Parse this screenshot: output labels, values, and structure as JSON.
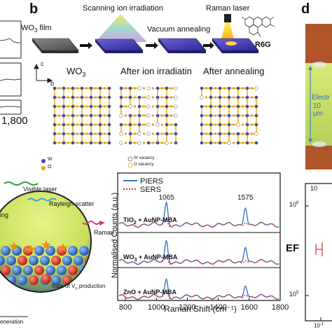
{
  "panel_labels": {
    "b": "b",
    "d": "d"
  },
  "top_left": {
    "axis_tick": "1,800"
  },
  "panel_b": {
    "steps": {
      "film": "WO",
      "film_sub": "3",
      "film_suffix": " film",
      "ion": "Scanning ion irradiation",
      "anneal": "Vacuum annealing",
      "raman": "Raman laser",
      "probe": "R6G"
    },
    "lattice_titles": {
      "pristine": "WO",
      "pristine_sub": "3",
      "irradiated": "After ion irradiatin",
      "annealed": "After annealing"
    },
    "axis_c": "c",
    "axis_b": "b",
    "legend_left": [
      "W",
      "O"
    ],
    "legend_mid": [
      "W vacancy",
      "O vacancy"
    ]
  },
  "bottom_left": {
    "visible_laser": "Visible laser",
    "rayleigh": "Rayleigh scatter",
    "raman": "Raman",
    "rate": "Rate of V",
    "rate_sub": "o",
    "rate_suffix": " production",
    "partial_left": "ing",
    "partial_bottom": "eneration"
  },
  "panel_d": {
    "electrode_label": "Electr",
    "scale_label": "10 μm",
    "ef_label": "EF",
    "y_ticks": [
      "10",
      "10",
      "10"
    ],
    "y_tick_exps": [
      "6",
      "5",
      ""
    ],
    "x_tick": "10",
    "x_tick_exp": "-1"
  },
  "chart_data": {
    "type": "line",
    "xlabel": "Raman Shift (cm⁻¹)",
    "ylabel": "Normalised Counts (a.u.)",
    "xlim": [
      750,
      1800
    ],
    "x_ticks": [
      "800",
      "1000",
      "1200",
      "1400",
      "1600",
      "1800"
    ],
    "legend": [
      {
        "name": "PIERS",
        "color": "#3b78c3",
        "style": "solid"
      },
      {
        "name": "SERS",
        "color": "#d62d3a",
        "style": "dotted"
      }
    ],
    "annotations": [
      "1065",
      "1575"
    ],
    "rows": [
      {
        "label_main": "TiO",
        "label_sub": "2",
        "label_suffix": " + AuNP-MBA",
        "piers_peaks": [
          [
            1065,
            1.0
          ],
          [
            1575,
            0.85
          ]
        ],
        "sers_peaks": [
          [
            1065,
            0.25
          ],
          [
            1575,
            0.2
          ]
        ]
      },
      {
        "label_main": "WO",
        "label_sub": "3",
        "label_suffix": " + AuNP-MBA",
        "piers_peaks": [
          [
            1065,
            0.95
          ],
          [
            1575,
            0.75
          ]
        ],
        "sers_peaks": [
          [
            1065,
            0.22
          ],
          [
            1575,
            0.18
          ]
        ]
      },
      {
        "label_main": "ZnO",
        "label_sub": "",
        "label_suffix": " + AuNP-MBA",
        "piers_peaks": [
          [
            1065,
            0.8
          ],
          [
            1575,
            0.6
          ]
        ],
        "sers_peaks": [
          [
            1065,
            0.25
          ],
          [
            1575,
            0.2
          ]
        ]
      }
    ]
  }
}
